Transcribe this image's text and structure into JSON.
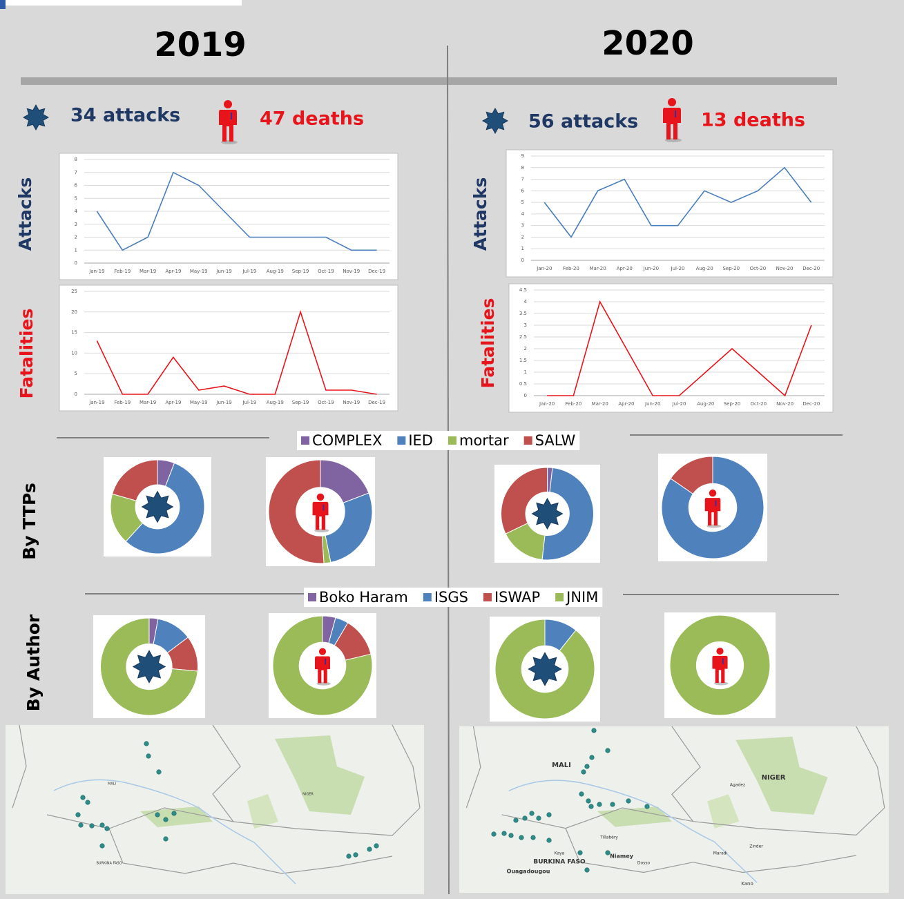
{
  "years": [
    "2019",
    "2020"
  ],
  "summary": [
    {
      "attacks": "34 attacks",
      "deaths": "47 deaths"
    },
    {
      "attacks": "56 attacks",
      "deaths": "13 deaths"
    }
  ],
  "row_labels": {
    "ttps": "By TTPs",
    "author": "By Author"
  },
  "maps": [
    {
      "labels": [
        "MALI",
        "NIGER",
        "BURKINA FASO"
      ]
    },
    {
      "labels": [
        "MALI",
        "NIGER",
        "BURKINA FASO",
        "Niamey",
        "Ouagadougou",
        "Agadez",
        "Zinder",
        "Kano",
        "Dosso",
        "Kaya",
        "Tillabéry",
        "Maradi"
      ]
    }
  ],
  "chart_data": [
    {
      "type": "line",
      "ylabel": "Attacks",
      "color": "#4a7ebb",
      "categories": [
        "Jan-19",
        "Feb-19",
        "Mar-19",
        "Apr-19",
        "May-19",
        "Jun-19",
        "Jul-19",
        "Aug-19",
        "Sep-19",
        "Oct-19",
        "Nov-19",
        "Dec-19"
      ],
      "values": [
        4,
        1,
        2,
        7,
        6,
        4,
        2,
        2,
        2,
        2,
        1,
        1
      ],
      "ylim": [
        0,
        8
      ],
      "yticks": [
        0,
        1,
        2,
        3,
        4,
        5,
        6,
        7,
        8
      ],
      "grid": true
    },
    {
      "type": "line",
      "ylabel": "Fatalities",
      "color": "#e8141b",
      "categories": [
        "Jan-19",
        "Feb-19",
        "Mar-19",
        "Apr-19",
        "May-19",
        "Jun-19",
        "Jul-19",
        "Aug-19",
        "Sep-19",
        "Oct-19",
        "Nov-19",
        "Dec-19"
      ],
      "values": [
        13,
        0,
        0,
        9,
        1,
        2,
        0,
        0,
        20,
        1,
        1,
        0
      ],
      "ylim": [
        0,
        25
      ],
      "yticks": [
        0,
        5,
        10,
        15,
        20,
        25
      ],
      "grid": true
    },
    {
      "type": "line",
      "ylabel": "Attacks",
      "color": "#4a7ebb",
      "categories": [
        "Jan-20",
        "Feb-20",
        "Mar-20",
        "Apr-20",
        "Jun-20",
        "Jul-20",
        "Aug-20",
        "Sep-20",
        "Oct-20",
        "Nov-20",
        "Dec-20"
      ],
      "values": [
        5,
        2,
        6,
        7,
        3,
        3,
        6,
        5,
        6,
        8,
        5
      ],
      "ylim": [
        0,
        9
      ],
      "yticks": [
        0,
        1,
        2,
        3,
        4,
        5,
        6,
        7,
        8,
        9
      ],
      "grid": true
    },
    {
      "type": "line",
      "ylabel": "Fatalities",
      "color": "#e8141b",
      "categories": [
        "Jan-20",
        "Feb-20",
        "Mar-20",
        "Apr-20",
        "Jun-20",
        "Jul-20",
        "Aug-20",
        "Sep-20",
        "Oct-20",
        "Nov-20",
        "Dec-20"
      ],
      "values": [
        0,
        0,
        4,
        2,
        0,
        0,
        1,
        2,
        1,
        0,
        3
      ],
      "ylim": [
        0,
        4.5
      ],
      "yticks": [
        0,
        0.5,
        1,
        1.5,
        2,
        2.5,
        3,
        3.5,
        4,
        4.5
      ],
      "grid": true
    },
    {
      "type": "donut",
      "categories": [
        "COMPLEX",
        "IED",
        "mortar",
        "SALW"
      ],
      "colors": [
        "#8064a2",
        "#4f81bd",
        "#9bbb59",
        "#c0504d"
      ],
      "values": [
        2,
        19,
        6,
        7
      ]
    },
    {
      "type": "donut",
      "categories": [
        "COMPLEX",
        "IED",
        "mortar",
        "SALW"
      ],
      "colors": [
        "#8064a2",
        "#4f81bd",
        "#9bbb59",
        "#c0504d"
      ],
      "values": [
        9,
        13,
        1,
        24
      ]
    },
    {
      "type": "donut",
      "categories": [
        "COMPLEX",
        "IED",
        "mortar",
        "SALW"
      ],
      "colors": [
        "#8064a2",
        "#4f81bd",
        "#9bbb59",
        "#c0504d"
      ],
      "values": [
        1,
        28,
        9,
        18
      ]
    },
    {
      "type": "donut",
      "categories": [
        "COMPLEX",
        "IED",
        "mortar",
        "SALW"
      ],
      "colors": [
        "#8064a2",
        "#4f81bd",
        "#9bbb59",
        "#c0504d"
      ],
      "values": [
        0,
        11,
        0,
        2
      ]
    },
    {
      "type": "donut",
      "categories": [
        "Boko Haram",
        "ISGS",
        "ISWAP",
        "JNIM"
      ],
      "colors": [
        "#8064a2",
        "#4f81bd",
        "#c0504d",
        "#9bbb59"
      ],
      "values": [
        1,
        4,
        4,
        25
      ]
    },
    {
      "type": "donut",
      "categories": [
        "Boko Haram",
        "ISGS",
        "ISWAP",
        "JNIM"
      ],
      "colors": [
        "#8064a2",
        "#4f81bd",
        "#c0504d",
        "#9bbb59"
      ],
      "values": [
        2,
        2,
        6,
        37
      ]
    },
    {
      "type": "donut",
      "categories": [
        "Boko Haram",
        "ISGS",
        "ISWAP",
        "JNIM"
      ],
      "colors": [
        "#8064a2",
        "#4f81bd",
        "#c0504d",
        "#9bbb59"
      ],
      "values": [
        0,
        6,
        0,
        50
      ]
    },
    {
      "type": "donut",
      "categories": [
        "Boko Haram",
        "ISGS",
        "ISWAP",
        "JNIM"
      ],
      "colors": [
        "#8064a2",
        "#4f81bd",
        "#c0504d",
        "#9bbb59"
      ],
      "values": [
        0,
        0,
        0,
        13
      ]
    }
  ]
}
